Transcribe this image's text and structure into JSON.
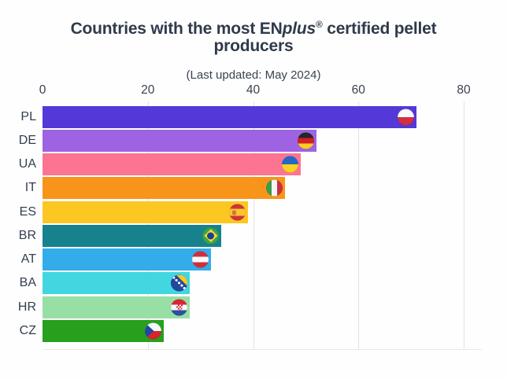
{
  "title": {
    "line1_pre": "Countries with the most EN",
    "line1_italic": "plus",
    "line1_sup": "®",
    "line1_post": " certified pellet",
    "line2": "producers"
  },
  "subtitle": "(Last updated: May 2024)",
  "chart_data": {
    "type": "bar",
    "orientation": "horizontal",
    "title": "Countries with the most ENplus® certified pellet producers",
    "subtitle": "(Last updated: May 2024)",
    "categories": [
      "PL",
      "DE",
      "UA",
      "IT",
      "ES",
      "BR",
      "AT",
      "BA",
      "HR",
      "CZ"
    ],
    "values": [
      71,
      52,
      49,
      46,
      39,
      34,
      32,
      28,
      28,
      23
    ],
    "bar_colors": [
      "#5438d8",
      "#9d63e2",
      "#fd7492",
      "#f9941a",
      "#fdc723",
      "#17818e",
      "#32ade9",
      "#41d6e0",
      "#98dfa5",
      "#27a01d"
    ],
    "flags": [
      "poland",
      "germany",
      "ukraine",
      "italy",
      "spain",
      "brazil",
      "austria",
      "bosnia-herzegovina",
      "croatia",
      "czechia"
    ],
    "xlim": [
      0,
      80
    ],
    "xticks": [
      0,
      20,
      40,
      60,
      80
    ],
    "xlabel": "",
    "ylabel": "",
    "grid": "vertical-light",
    "legend": "none",
    "gridline_color": "#e2e2e1",
    "text_color": "#333e4f"
  }
}
